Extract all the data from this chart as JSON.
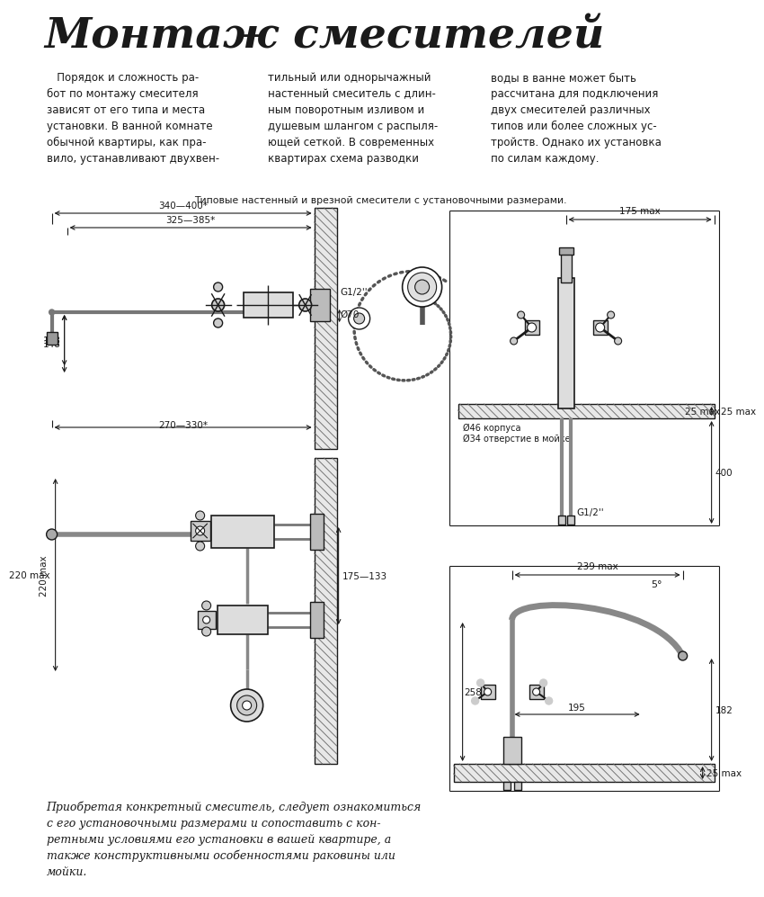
{
  "title": "Монтаж смесителей",
  "bg_color": "#ffffff",
  "text_color": "#1a1a1a",
  "line_color": "#1a1a1a",
  "body_text_col1": "   Порядок и сложность ра-\nбот по монтажу смесителя\nзависят от его типа и места\nустановки. В ванной комнате\nобычной квартиры, как пра-\nвило, устанавливают двухвен-",
  "body_text_col2": "тильный или однорычажный\nнастенный смеситель с длин-\nным поворотным изливом и\nдушевым шлангом с распыля-\nющей сеткой. В современных\nквартирах схема разводки",
  "body_text_col3": "воды в ванне может быть\nрассчитана для подключения\nдвух смесителей различных\nтипов или более сложных ус-\nтройств. Однако их установка\nпо силам каждому.",
  "caption": "Типовые настенный и врезной смесители с установочными размерами.",
  "footer_text": "Приобретая конкретный смеситель, следует ознакомиться\nс его установочными размерами и сопоставить с кон-\nретными условиями его установки в вашей квартире, а\nтакже конструктивными особенностями раковины или\nмойки.",
  "dim_340_400": "340—400*",
  "dim_325_385": "325—385*",
  "dim_270_330": "270—330*",
  "dim_148": "148",
  "dim_175max_top": "175 max",
  "dim_25max_right": "25 max",
  "dim_400": "400",
  "dim_46": "Ø46 корпуса",
  "dim_34": "Ø34 отверстие в мойке",
  "dim_G12_top": "G1/2''",
  "dim_o70": "Ø70",
  "dim_220max": "220 max",
  "dim_175_133": "175—133",
  "dim_239max": "239 max",
  "dim_258": "258",
  "dim_195": "195",
  "dim_182": "182",
  "dim_5deg": "5°",
  "dim_25max_bot": "25 max",
  "dim_G12_bot": "G1/2''"
}
